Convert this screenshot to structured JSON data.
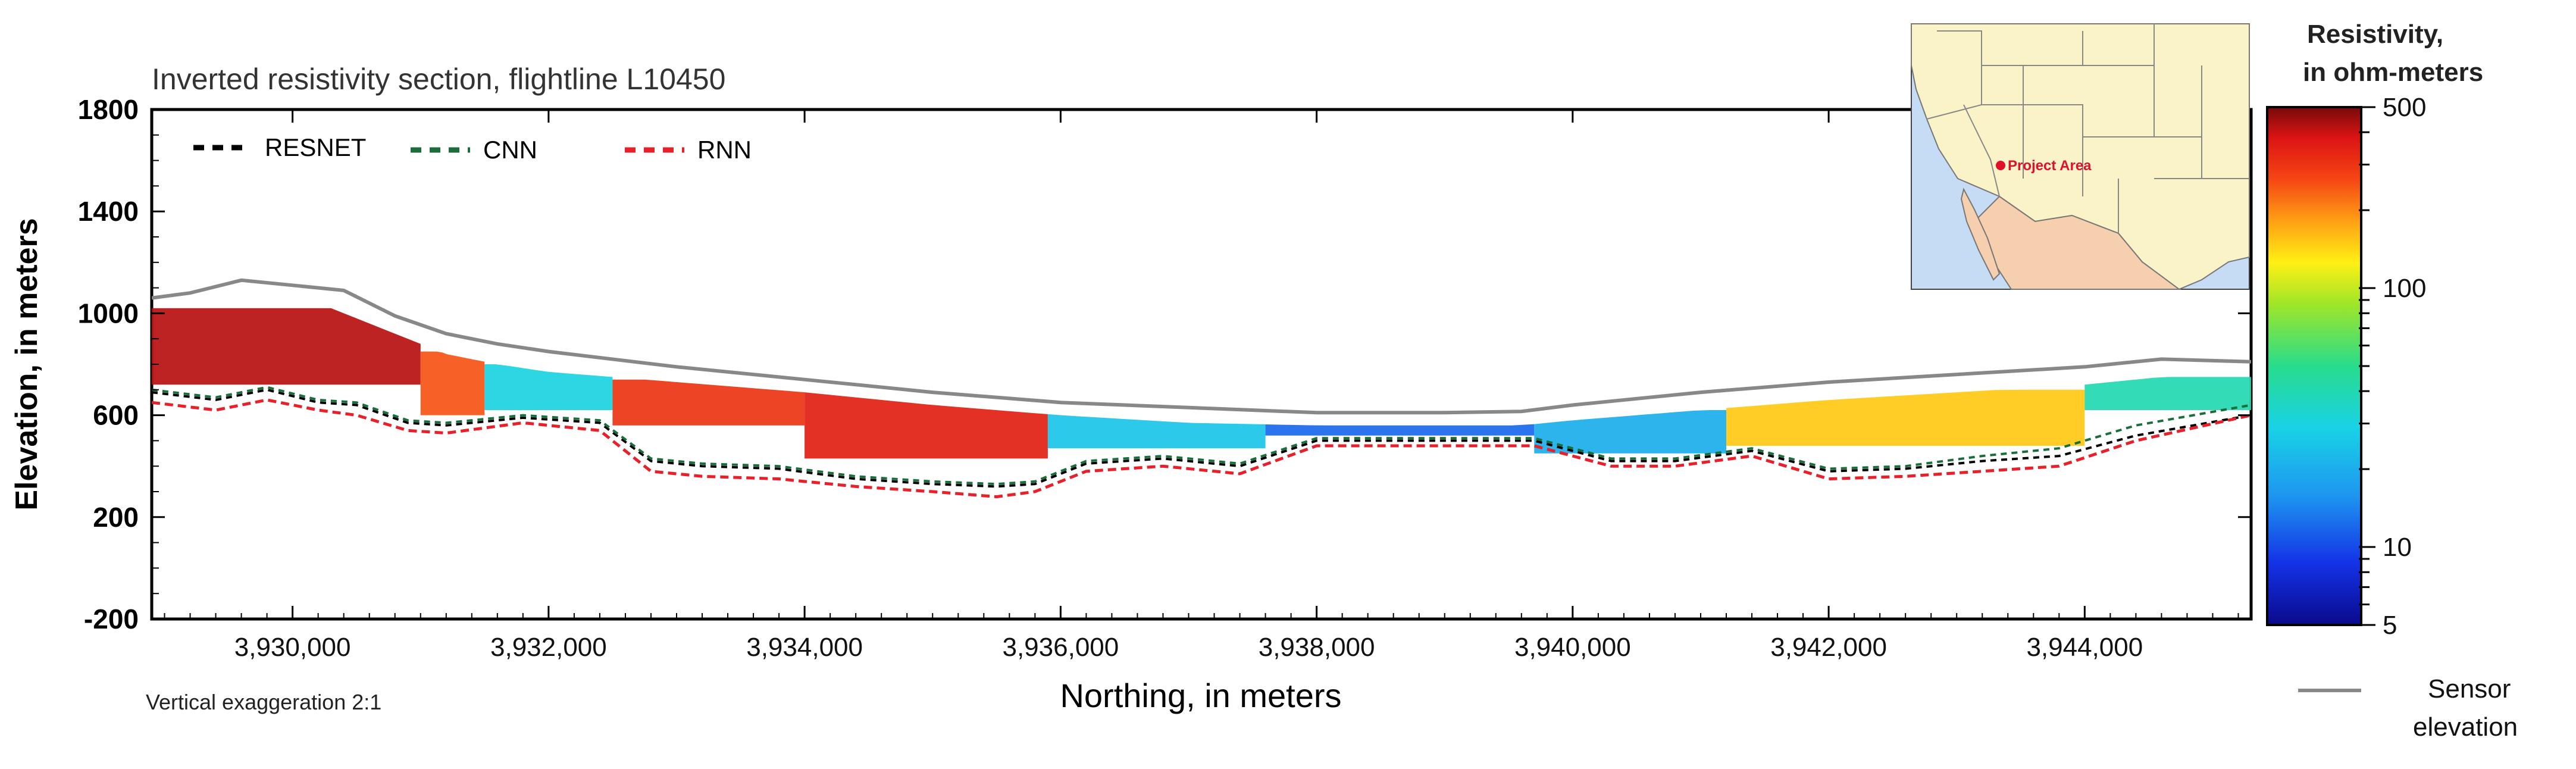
{
  "chart_data": {
    "type": "heatmap",
    "title": "Inverted resistivity section, flightline L10450",
    "xlabel": "Northing, in meters",
    "ylabel": "Elevation, in meters",
    "xlim": [
      3928900,
      3945300
    ],
    "ylim": [
      -200,
      1800
    ],
    "xticks": [
      3930000,
      3932000,
      3934000,
      3936000,
      3938000,
      3940000,
      3942000,
      3944000
    ],
    "xtick_labels": [
      "3,930,000",
      "3,932,000",
      "3,934,000",
      "3,936,000",
      "3,938,000",
      "3,940,000",
      "3,942,000",
      "3,944,000"
    ],
    "yticks": [
      -200,
      200,
      600,
      1000,
      1400,
      1800
    ],
    "ytick_labels": [
      "-200",
      "200",
      "600",
      "1000",
      "1400",
      "1800"
    ],
    "note": "Vertical exaggeration 2:1",
    "legend": [
      {
        "label": "RESNET",
        "color": "#000000",
        "style": "dashed"
      },
      {
        "label": "CNN",
        "color": "#1a6e3c",
        "style": "dashed"
      },
      {
        "label": "RNN",
        "color": "#e8202a",
        "style": "dashed"
      }
    ],
    "colorbar": {
      "title": [
        "Resistivity,",
        "in ohm-meters"
      ],
      "scale": "log",
      "range": [
        5,
        500
      ],
      "ticks": [
        5,
        10,
        100,
        500
      ],
      "tick_labels": [
        "5",
        "10",
        "100",
        "500"
      ]
    },
    "sensor_elevation": {
      "label": [
        "Sensor",
        "elevation"
      ],
      "color": "#888888",
      "x": [
        3928900,
        3929200,
        3929600,
        3930000,
        3930400,
        3930800,
        3931200,
        3931600,
        3932000,
        3933000,
        3934000,
        3935000,
        3936000,
        3937000,
        3938000,
        3939000,
        3939600,
        3940000,
        3941000,
        3942000,
        3943000,
        3944000,
        3944600,
        3945300
      ],
      "y": [
        1060,
        1080,
        1130,
        1110,
        1090,
        990,
        920,
        880,
        850,
        790,
        740,
        690,
        650,
        630,
        610,
        610,
        615,
        640,
        690,
        730,
        760,
        790,
        820,
        810
      ]
    },
    "section_top": {
      "x": [
        3928900,
        3929300,
        3929700,
        3930300,
        3930800,
        3931200,
        3931600,
        3932000,
        3933000,
        3934000,
        3935000,
        3936000,
        3937000,
        3938000,
        3939000,
        3939600,
        3940000,
        3941000,
        3942000,
        3943000,
        3944000,
        3944600,
        3945300
      ],
      "y": [
        1020,
        1040,
        1060,
        1020,
        920,
        840,
        800,
        770,
        730,
        690,
        640,
        600,
        570,
        560,
        560,
        560,
        580,
        620,
        660,
        690,
        720,
        750,
        760
      ]
    },
    "doi_resnet": {
      "x": [
        3928900,
        3929400,
        3929800,
        3930200,
        3930500,
        3930900,
        3931200,
        3931800,
        3932400,
        3932800,
        3933200,
        3933800,
        3934400,
        3935000,
        3935500,
        3935800,
        3936200,
        3936800,
        3937400,
        3938000,
        3938600,
        3939300,
        3939700,
        3940300,
        3940800,
        3941400,
        3942000,
        3942600,
        3943200,
        3943800,
        3944400,
        3945300
      ],
      "y": [
        690,
        660,
        700,
        650,
        640,
        570,
        560,
        590,
        570,
        420,
        400,
        390,
        350,
        330,
        320,
        330,
        410,
        430,
        400,
        500,
        500,
        500,
        500,
        420,
        420,
        460,
        380,
        390,
        420,
        440,
        520,
        600
      ]
    },
    "doi_cnn": {
      "x": [
        3928900,
        3929400,
        3929800,
        3930200,
        3930500,
        3930900,
        3931200,
        3931800,
        3932400,
        3932800,
        3933200,
        3933800,
        3934400,
        3935000,
        3935500,
        3935800,
        3936200,
        3936800,
        3937400,
        3938000,
        3938600,
        3939300,
        3939700,
        3940300,
        3940800,
        3941400,
        3942000,
        3942600,
        3943200,
        3943800,
        3944400,
        3945300
      ],
      "y": [
        700,
        670,
        710,
        660,
        650,
        580,
        570,
        600,
        580,
        430,
        410,
        400,
        360,
        340,
        330,
        340,
        420,
        440,
        410,
        510,
        510,
        510,
        510,
        430,
        430,
        470,
        390,
        400,
        440,
        470,
        560,
        640
      ]
    },
    "doi_rnn": {
      "x": [
        3928900,
        3929400,
        3929800,
        3930200,
        3930500,
        3930900,
        3931200,
        3931800,
        3932400,
        3932800,
        3933200,
        3933800,
        3934400,
        3935000,
        3935500,
        3935800,
        3936200,
        3936800,
        3937400,
        3938000,
        3938600,
        3939300,
        3939700,
        3940300,
        3940800,
        3941400,
        3942000,
        3942600,
        3943200,
        3943800,
        3944400,
        3945300
      ],
      "y": [
        650,
        620,
        660,
        620,
        600,
        540,
        530,
        570,
        540,
        380,
        360,
        350,
        320,
        300,
        280,
        300,
        380,
        400,
        370,
        480,
        480,
        480,
        480,
        400,
        400,
        440,
        350,
        360,
        380,
        400,
        500,
        600
      ]
    },
    "resistivity_blocks": [
      {
        "x0": 3928900,
        "x1": 3931000,
        "ytop": 1020,
        "ybot": 720,
        "ohm": 420
      },
      {
        "x0": 3931000,
        "x1": 3931500,
        "ytop": 850,
        "ybot": 600,
        "ohm": 250
      },
      {
        "x0": 3931500,
        "x1": 3932500,
        "ytop": 800,
        "ybot": 620,
        "ohm": 30
      },
      {
        "x0": 3932500,
        "x1": 3934000,
        "ytop": 740,
        "ybot": 560,
        "ohm": 300
      },
      {
        "x0": 3934000,
        "x1": 3935900,
        "ytop": 700,
        "ybot": 430,
        "ohm": 350
      },
      {
        "x0": 3935900,
        "x1": 3937600,
        "ytop": 620,
        "ybot": 470,
        "ohm": 25
      },
      {
        "x0": 3937600,
        "x1": 3939700,
        "ytop": 580,
        "ybot": 520,
        "ohm": 12
      },
      {
        "x0": 3939700,
        "x1": 3941200,
        "ytop": 620,
        "ybot": 450,
        "ohm": 20
      },
      {
        "x0": 3941200,
        "x1": 3944000,
        "ytop": 700,
        "ybot": 480,
        "ohm": 150
      },
      {
        "x0": 3944000,
        "x1": 3945300,
        "ytop": 750,
        "ybot": 620,
        "ohm": 40
      }
    ],
    "inset_map": {
      "label": "Project Area",
      "marker_color": "#e0102a"
    }
  }
}
